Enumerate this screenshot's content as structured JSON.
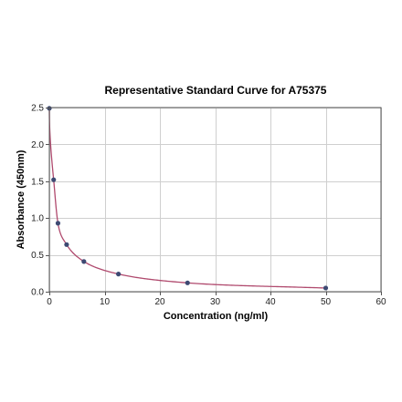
{
  "chart_data": {
    "type": "scatter",
    "title": "Representative Standard Curve for A75375",
    "xlabel": "Concentration (ng/ml)",
    "ylabel": "Absorbance (450nm)",
    "xlim": [
      0,
      60
    ],
    "ylim": [
      0,
      2.5
    ],
    "x_ticks": [
      0,
      10,
      20,
      30,
      40,
      50,
      60
    ],
    "y_ticks": [
      0.0,
      0.5,
      1.0,
      1.5,
      2.0,
      2.5
    ],
    "x_tick_labels": [
      "0",
      "10",
      "20",
      "30",
      "40",
      "50",
      "60"
    ],
    "y_tick_labels": [
      "0.0",
      "0.5",
      "1.0",
      "1.5",
      "2.0",
      "2.5"
    ],
    "grid": true,
    "series": [
      {
        "x": [
          0,
          0.78,
          1.56,
          3.125,
          6.25,
          12.5,
          25,
          50
        ],
        "y": [
          2.49,
          1.52,
          0.93,
          0.64,
          0.41,
          0.24,
          0.12,
          0.05
        ],
        "marker_color": "#3d4a73"
      }
    ],
    "fit_curve_color": "#b04a6e"
  }
}
